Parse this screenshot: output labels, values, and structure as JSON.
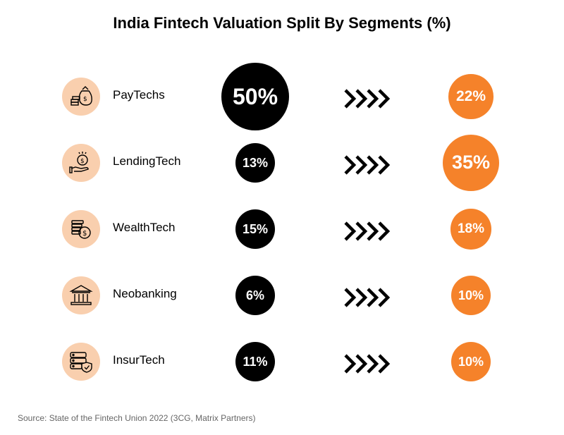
{
  "chart_data": {
    "type": "bubble",
    "title": "India Fintech Valuation Split By Segments (%)",
    "segments": [
      {
        "name": "PayTechs",
        "icon": "money-bag-coins-icon",
        "before": 50,
        "before_label": "50%",
        "after": 22,
        "after_label": "22%"
      },
      {
        "name": "LendingTech",
        "icon": "hand-coin-icon",
        "before": 13,
        "before_label": "13%",
        "after": 35,
        "after_label": "35%"
      },
      {
        "name": "WealthTech",
        "icon": "coin-stack-icon",
        "before": 15,
        "before_label": "15%",
        "after": 18,
        "after_label": "18%"
      },
      {
        "name": "Neobanking",
        "icon": "bank-building-icon",
        "before": 6,
        "before_label": "6%",
        "after": 10,
        "after_label": "10%"
      },
      {
        "name": "InsurTech",
        "icon": "server-shield-icon",
        "before": 11,
        "before_label": "11%",
        "after": 10,
        "after_label": "10%"
      }
    ],
    "colors": {
      "before": "#000000",
      "after": "#f5822a",
      "icon_background": "#f9cfae",
      "arrow": "#000000"
    },
    "source": "Source: State of the Fintech Union 2022 (3CG, Matrix Partners)"
  }
}
